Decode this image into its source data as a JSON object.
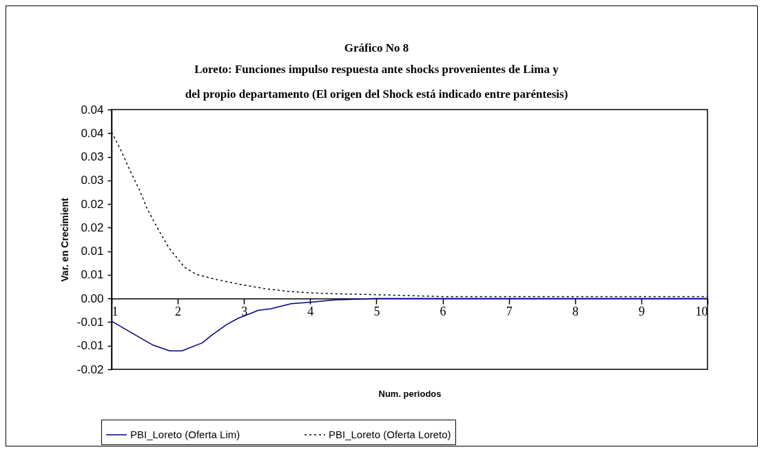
{
  "chart_data": {
    "type": "line",
    "title": "Gráfico No 8",
    "subtitle": "Loreto: Funciones impulso respuesta ante shocks  provenientes de Lima y del propio departamento (El origen del Shock está indicado entre paréntesis)",
    "xlabel": "Num. periodos",
    "ylabel": "Var. en Crecimient",
    "xlim": [
      1,
      10
    ],
    "xticks": [
      1,
      2,
      3,
      4,
      5,
      6,
      7,
      8,
      9,
      10
    ],
    "ylim": [
      -0.015,
      0.04
    ],
    "yticks": [
      {
        "value": -0.015,
        "label": "-0.02"
      },
      {
        "value": -0.01,
        "label": "-0.01"
      },
      {
        "value": -0.005,
        "label": "-0.01"
      },
      {
        "value": 0,
        "label": "0.00"
      },
      {
        "value": 0.005,
        "label": "0.01"
      },
      {
        "value": 0.01,
        "label": "0.01"
      },
      {
        "value": 0.015,
        "label": "0.02"
      },
      {
        "value": 0.02,
        "label": "0.02"
      },
      {
        "value": 0.025,
        "label": "0.03"
      },
      {
        "value": 0.03,
        "label": "0.03"
      },
      {
        "value": 0.035,
        "label": "0.04"
      },
      {
        "value": 0.04,
        "label": "0.04"
      }
    ],
    "grid": false,
    "legend": "bottom",
    "marker": "none",
    "series": [
      {
        "name": "PBI_Loreto (Oferta Lim)",
        "color": "#000080",
        "line_style": "solid",
        "x": [
          1,
          1.38,
          1.63,
          1.88,
          2.06,
          2.37,
          2.51,
          2.74,
          2.91,
          3.22,
          3.4,
          3.71,
          3.99,
          4.37,
          5,
          6,
          7,
          8,
          9,
          10
        ],
        "values": [
          -0.0048,
          -0.0079,
          -0.0099,
          -0.0111,
          -0.0111,
          -0.0094,
          -0.0078,
          -0.0055,
          -0.0042,
          -0.0025,
          -0.0022,
          -0.0011,
          -0.0008,
          -0.0003,
          0,
          0,
          0,
          0,
          0,
          0
        ]
      },
      {
        "name": "PBI_Loreto (Oferta Loreto)",
        "color": "#000000",
        "line_style": "dashed",
        "x": [
          1,
          1.14,
          1.28,
          1.42,
          1.54,
          1.69,
          1.87,
          2,
          2.1,
          2.28,
          2.59,
          2.97,
          3.31,
          3.66,
          4,
          4.37,
          5,
          6,
          7,
          8,
          9,
          10
        ],
        "values": [
          0.0352,
          0.0314,
          0.027,
          0.023,
          0.0189,
          0.015,
          0.0106,
          0.0084,
          0.0066,
          0.0051,
          0.004,
          0.0029,
          0.0021,
          0.0015,
          0.0012,
          0.001,
          0.0008,
          0.0004,
          0.0004,
          0.0004,
          0.0004,
          0.0004
        ]
      }
    ]
  }
}
